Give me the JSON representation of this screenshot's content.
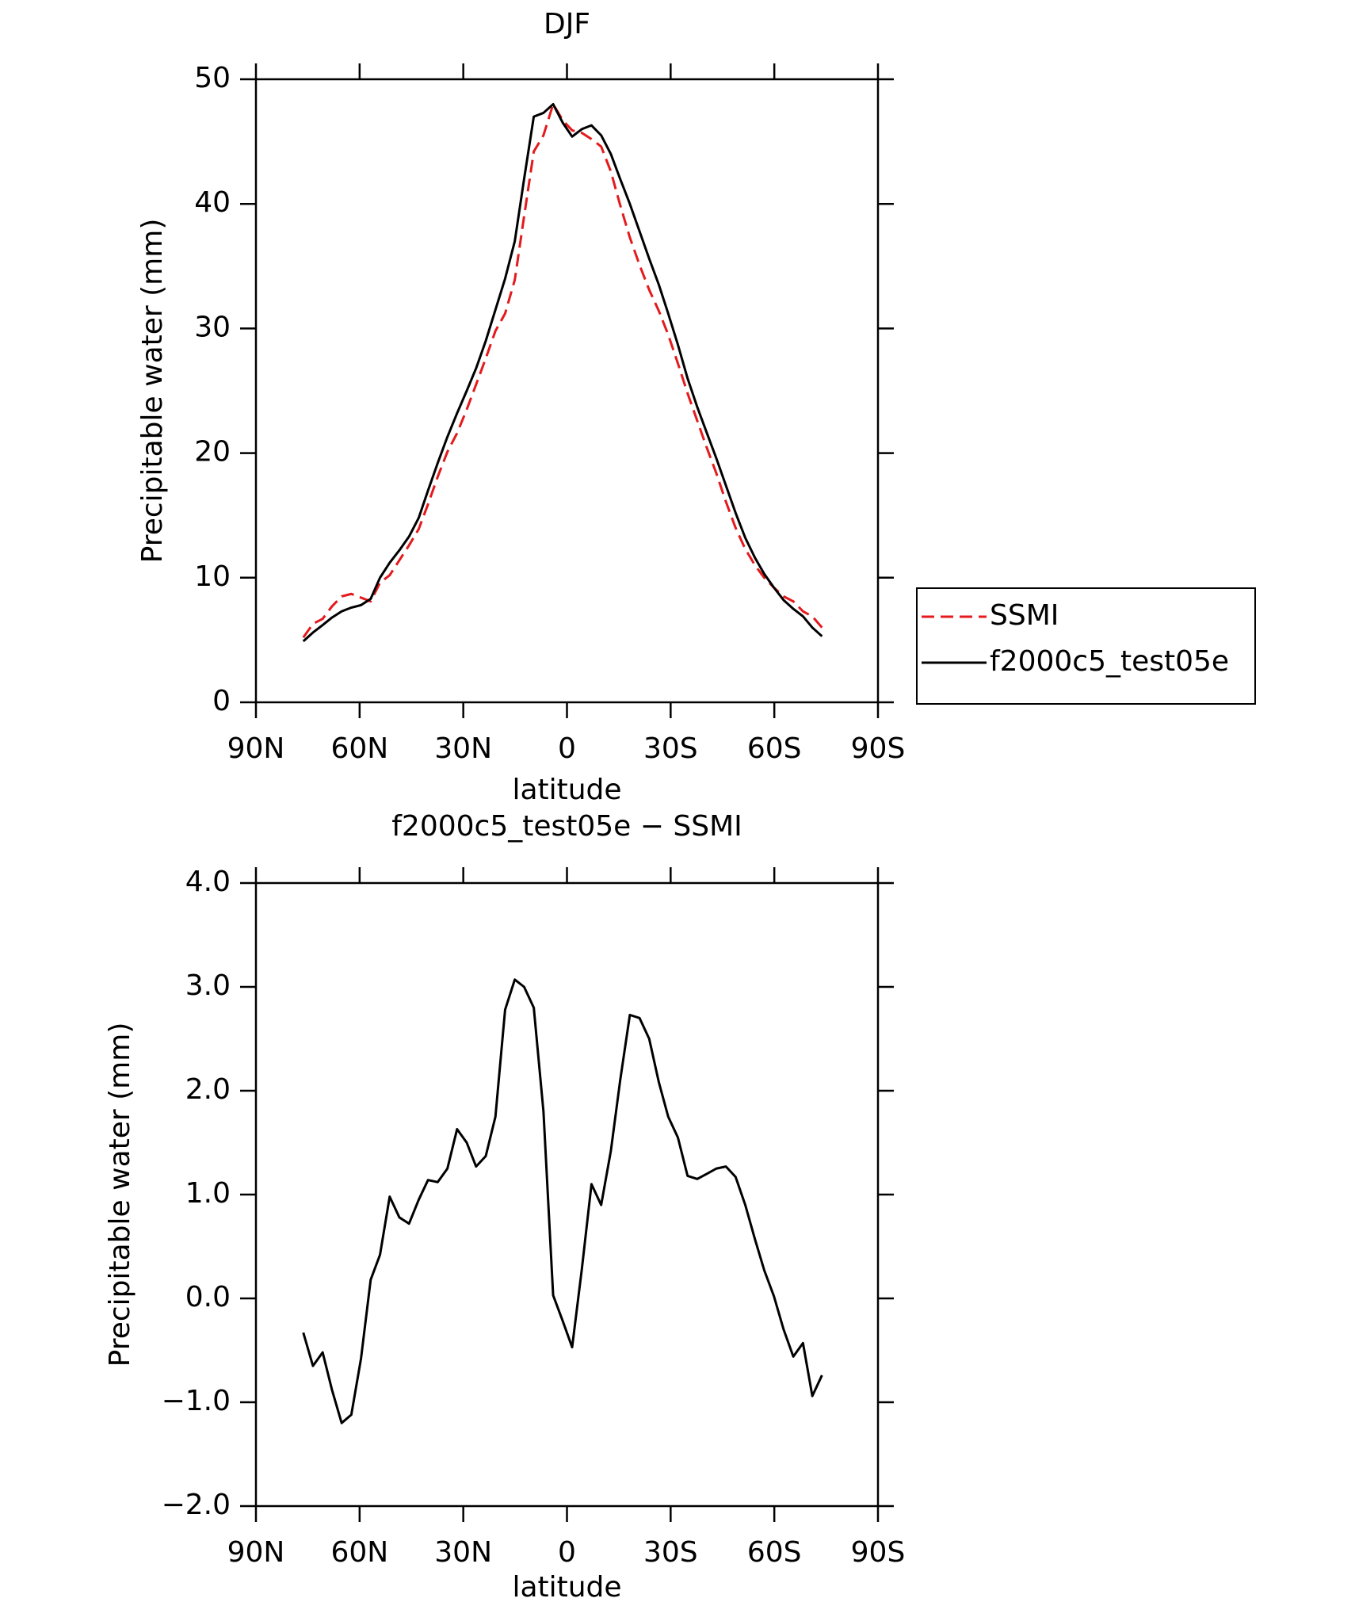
{
  "chart_data": [
    {
      "type": "line",
      "title": "DJF",
      "xlabel": "latitude",
      "ylabel": "Precipitable water (mm)",
      "x": [
        76.3,
        73.5,
        70.7,
        68.0,
        65.2,
        62.4,
        59.6,
        56.8,
        54.1,
        51.3,
        48.5,
        45.7,
        42.9,
        40.2,
        37.4,
        34.6,
        31.8,
        29.0,
        26.3,
        23.5,
        20.7,
        17.9,
        15.1,
        12.4,
        9.6,
        6.8,
        4.0,
        1.2,
        -1.5,
        -4.3,
        -7.1,
        -9.9,
        -12.7,
        -15.4,
        -18.2,
        -21.0,
        -23.8,
        -26.6,
        -29.3,
        -32.1,
        -34.9,
        -37.7,
        -40.5,
        -43.2,
        -46.0,
        -48.8,
        -51.6,
        -54.4,
        -57.1,
        -59.9,
        -62.7,
        -65.5,
        -68.3,
        -71.0,
        -73.8
      ],
      "series": [
        {
          "name": "SSMI",
          "color": "#e41a1c",
          "linestyle": "dashed",
          "values": [
            5.2,
            6.3,
            6.7,
            7.7,
            8.5,
            8.7,
            8.4,
            8.1,
            9.6,
            10.2,
            11.4,
            12.6,
            13.9,
            15.9,
            18.1,
            20.1,
            21.6,
            23.5,
            25.5,
            27.6,
            29.8,
            31.2,
            33.9,
            39.0,
            44.2,
            45.5,
            48.0,
            46.7,
            45.9,
            45.7,
            45.2,
            44.6,
            42.6,
            39.9,
            37.3,
            35.1,
            33.1,
            31.4,
            29.5,
            27.2,
            24.8,
            22.6,
            20.4,
            18.4,
            16.1,
            14.0,
            12.3,
            11.0,
            10.0,
            9.2,
            8.5,
            8.1,
            7.3,
            6.9,
            6.0
          ]
        },
        {
          "name": "f2000c5_test05e",
          "color": "#000000",
          "linestyle": "solid",
          "values": [
            4.9,
            5.6,
            6.2,
            6.8,
            7.3,
            7.6,
            7.8,
            8.3,
            10.0,
            11.2,
            12.2,
            13.3,
            14.8,
            17.0,
            19.2,
            21.3,
            23.2,
            25.0,
            26.8,
            29.0,
            31.5,
            34.0,
            37.0,
            42.0,
            47.0,
            47.3,
            48.0,
            46.5,
            45.4,
            46.0,
            46.3,
            45.5,
            44.0,
            42.0,
            40.0,
            37.8,
            35.6,
            33.5,
            31.2,
            28.7,
            26.0,
            23.7,
            21.6,
            19.6,
            17.4,
            15.2,
            13.2,
            11.6,
            10.3,
            9.2,
            8.2,
            7.5,
            6.9,
            6.0,
            5.3
          ]
        }
      ],
      "xlim": [
        90,
        -90
      ],
      "xticks": [
        {
          "value": 90,
          "label": "90N"
        },
        {
          "value": 60,
          "label": "60N"
        },
        {
          "value": 30,
          "label": "30N"
        },
        0,
        {
          "value": -30,
          "label": "30S"
        },
        {
          "value": -60,
          "label": "60S"
        },
        {
          "value": -90,
          "label": "90S"
        }
      ],
      "ylim": [
        0,
        50
      ],
      "yticks": [
        0,
        10,
        20,
        30,
        40,
        50
      ],
      "legend": "outside-right"
    },
    {
      "type": "line",
      "title": "f2000c5_test05e − SSMI",
      "xlabel": "latitude",
      "ylabel": "Precipitable water (mm)",
      "x": [
        76.3,
        73.5,
        70.7,
        68.0,
        65.2,
        62.4,
        59.6,
        56.8,
        54.1,
        51.3,
        48.5,
        45.7,
        42.9,
        40.2,
        37.4,
        34.6,
        31.8,
        29.0,
        26.3,
        23.5,
        20.7,
        17.9,
        15.1,
        12.4,
        9.6,
        6.8,
        4.0,
        1.2,
        -1.5,
        -4.3,
        -7.1,
        -9.9,
        -12.7,
        -15.4,
        -18.2,
        -21.0,
        -23.8,
        -26.6,
        -29.3,
        -32.1,
        -34.9,
        -37.7,
        -40.5,
        -43.2,
        -46.0,
        -48.8,
        -51.6,
        -54.4,
        -57.1,
        -59.9,
        -62.7,
        -65.5,
        -68.3,
        -71.0,
        -73.8
      ],
      "values": [
        -0.33,
        -0.65,
        -0.52,
        -0.88,
        -1.2,
        -1.12,
        -0.58,
        0.18,
        0.42,
        0.98,
        0.78,
        0.72,
        0.95,
        1.14,
        1.12,
        1.25,
        1.63,
        1.5,
        1.27,
        1.37,
        1.75,
        2.78,
        3.07,
        3.0,
        2.8,
        1.8,
        0.03,
        -0.22,
        -0.47,
        0.28,
        1.1,
        0.9,
        1.42,
        2.1,
        2.73,
        2.7,
        2.5,
        2.08,
        1.75,
        1.55,
        1.18,
        1.15,
        1.2,
        1.25,
        1.27,
        1.17,
        0.9,
        0.57,
        0.27,
        0.02,
        -0.3,
        -0.56,
        -0.43,
        -0.94,
        -0.74
      ],
      "color": "#000000",
      "xlim": [
        90,
        -90
      ],
      "xticks": [
        {
          "value": 90,
          "label": "90N"
        },
        {
          "value": 60,
          "label": "60N"
        },
        {
          "value": 30,
          "label": "30N"
        },
        0,
        {
          "value": -30,
          "label": "30S"
        },
        {
          "value": -60,
          "label": "60S"
        },
        {
          "value": -90,
          "label": "90S"
        }
      ],
      "ylim": [
        -2,
        4
      ],
      "yticks": [
        {
          "value": -2,
          "label": "−2.0"
        },
        {
          "value": -1,
          "label": "−1.0"
        },
        {
          "value": 0,
          "label": "0.0"
        },
        {
          "value": 1,
          "label": "1.0"
        },
        {
          "value": 2,
          "label": "2.0"
        },
        {
          "value": 3,
          "label": "3.0"
        },
        {
          "value": 4,
          "label": "4.0"
        }
      ]
    }
  ]
}
